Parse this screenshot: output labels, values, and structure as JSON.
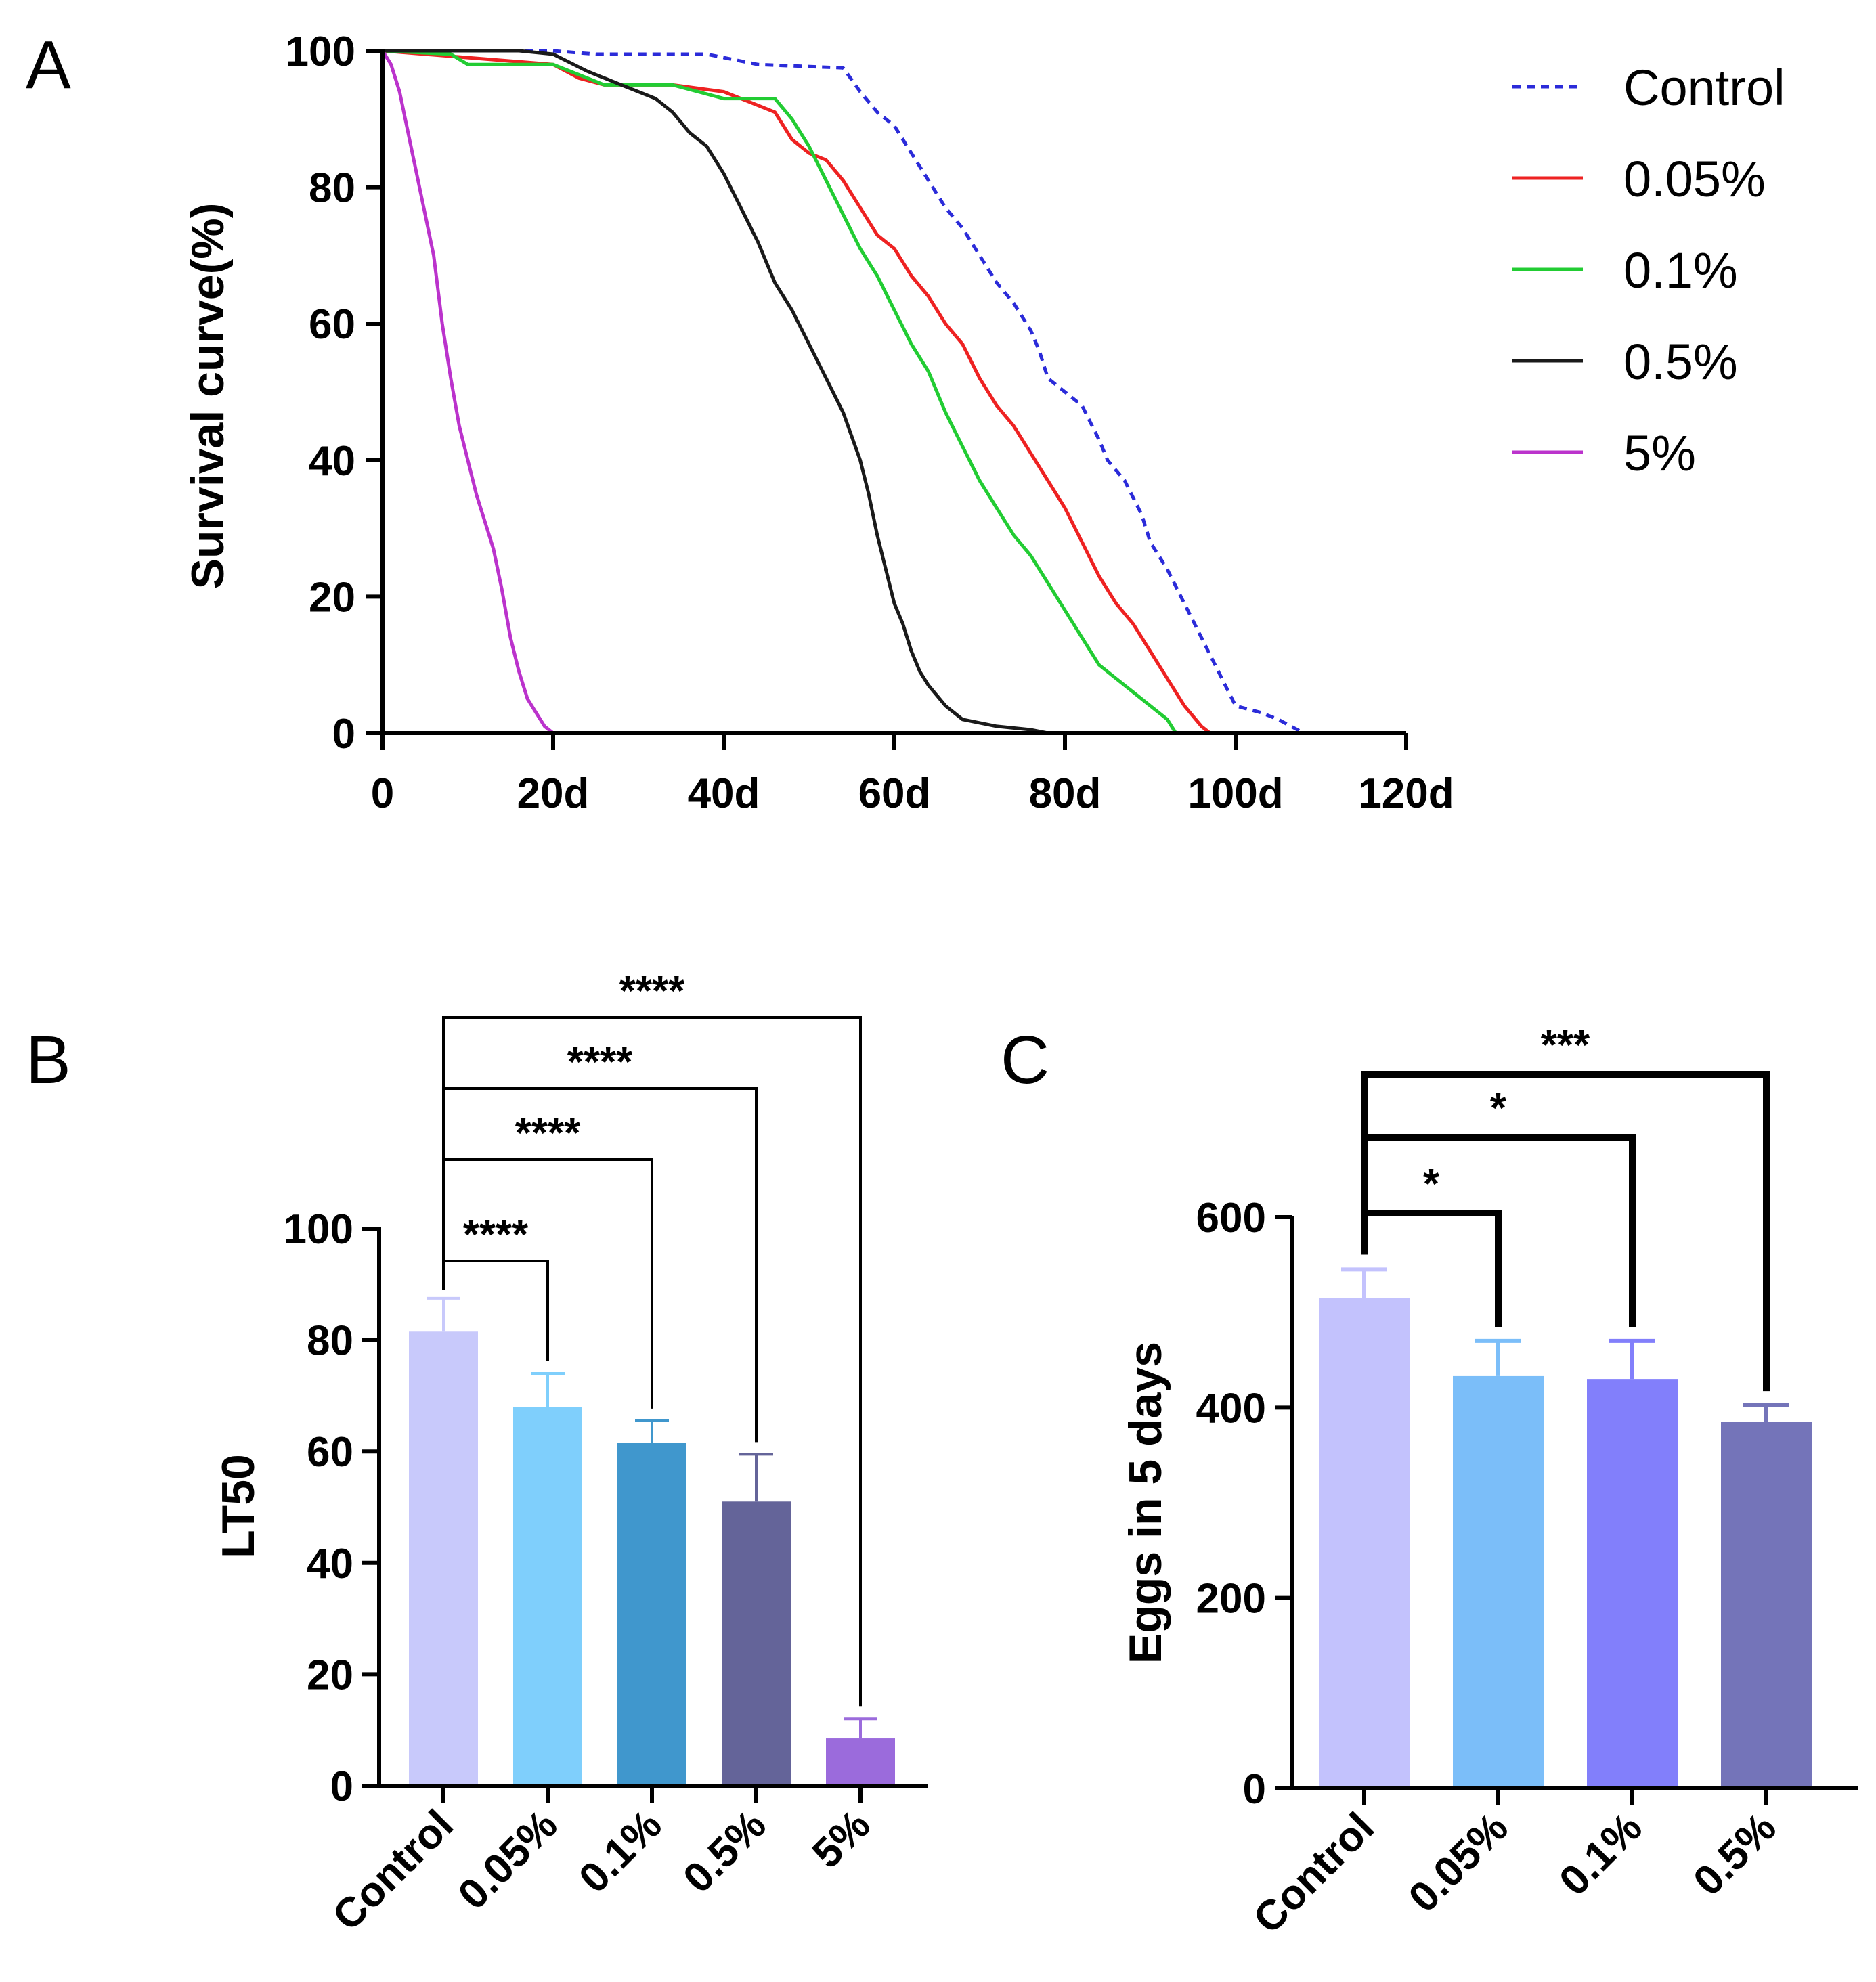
{
  "figure": {
    "panels": {
      "a": "A",
      "b": "B",
      "c": "C"
    }
  },
  "chart_data": [
    {
      "panel": "A",
      "type": "line",
      "title": "",
      "xlabel": "",
      "ylabel": "Survival curve(%)",
      "xlim": [
        0,
        120
      ],
      "ylim": [
        0,
        100
      ],
      "x_ticks": [
        0,
        20,
        40,
        60,
        80,
        100,
        120
      ],
      "x_tick_labels": [
        "0",
        "20d",
        "40d",
        "60d",
        "80d",
        "100d",
        "120d"
      ],
      "y_ticks": [
        0,
        20,
        40,
        60,
        80,
        100
      ],
      "y_tick_labels": [
        "0",
        "20",
        "40",
        "60",
        "80",
        "100"
      ],
      "legend_position": "top-right",
      "series": [
        {
          "name": "Control",
          "color": "#2b2bd9",
          "style": "dashed",
          "points": [
            [
              0,
              100
            ],
            [
              20,
              100
            ],
            [
              25,
              99.5
            ],
            [
              38,
              99.5
            ],
            [
              44,
              98
            ],
            [
              54,
              97.5
            ],
            [
              56,
              94
            ],
            [
              58,
              91
            ],
            [
              60,
              89
            ],
            [
              62,
              85
            ],
            [
              64,
              81
            ],
            [
              66,
              77
            ],
            [
              68,
              74
            ],
            [
              70,
              70
            ],
            [
              72,
              66
            ],
            [
              74,
              63
            ],
            [
              76,
              59
            ],
            [
              77,
              56
            ],
            [
              78,
              52
            ],
            [
              80,
              50
            ],
            [
              82,
              48
            ],
            [
              84,
              43
            ],
            [
              85,
              40
            ],
            [
              87,
              37
            ],
            [
              89,
              32
            ],
            [
              90,
              28
            ],
            [
              92,
              24
            ],
            [
              94,
              19
            ],
            [
              96,
              14
            ],
            [
              98,
              9
            ],
            [
              100,
              4
            ],
            [
              103,
              3
            ],
            [
              105,
              2
            ],
            [
              108,
              0
            ]
          ]
        },
        {
          "name": "0.05%",
          "color": "#ee2222",
          "style": "solid",
          "points": [
            [
              0,
              100
            ],
            [
              10,
              99
            ],
            [
              20,
              98
            ],
            [
              23,
              96
            ],
            [
              26,
              95
            ],
            [
              34,
              95
            ],
            [
              40,
              94
            ],
            [
              44,
              92
            ],
            [
              46,
              91
            ],
            [
              48,
              87
            ],
            [
              50,
              85
            ],
            [
              52,
              84
            ],
            [
              54,
              81
            ],
            [
              56,
              77
            ],
            [
              58,
              73
            ],
            [
              60,
              71
            ],
            [
              62,
              67
            ],
            [
              64,
              64
            ],
            [
              66,
              60
            ],
            [
              68,
              57
            ],
            [
              70,
              52
            ],
            [
              72,
              48
            ],
            [
              74,
              45
            ],
            [
              76,
              41
            ],
            [
              78,
              37
            ],
            [
              80,
              33
            ],
            [
              82,
              28
            ],
            [
              84,
              23
            ],
            [
              86,
              19
            ],
            [
              88,
              16
            ],
            [
              90,
              12
            ],
            [
              92,
              8
            ],
            [
              94,
              4
            ],
            [
              96,
              1
            ],
            [
              97,
              0
            ]
          ]
        },
        {
          "name": "0.1%",
          "color": "#22cc33",
          "style": "solid",
          "points": [
            [
              0,
              100
            ],
            [
              8,
              99.5
            ],
            [
              10,
              98
            ],
            [
              20,
              98
            ],
            [
              24,
              96
            ],
            [
              26,
              95
            ],
            [
              34,
              95
            ],
            [
              40,
              93
            ],
            [
              46,
              93
            ],
            [
              48,
              90
            ],
            [
              50,
              86
            ],
            [
              52,
              81
            ],
            [
              54,
              76
            ],
            [
              56,
              71
            ],
            [
              58,
              67
            ],
            [
              60,
              62
            ],
            [
              62,
              57
            ],
            [
              64,
              53
            ],
            [
              66,
              47
            ],
            [
              68,
              42
            ],
            [
              70,
              37
            ],
            [
              72,
              33
            ],
            [
              74,
              29
            ],
            [
              76,
              26
            ],
            [
              78,
              22
            ],
            [
              80,
              18
            ],
            [
              82,
              14
            ],
            [
              84,
              10
            ],
            [
              86,
              8
            ],
            [
              88,
              6
            ],
            [
              90,
              4
            ],
            [
              92,
              2
            ],
            [
              93,
              0
            ]
          ]
        },
        {
          "name": "0.5%",
          "color": "#1a1a1a",
          "style": "solid",
          "points": [
            [
              0,
              100
            ],
            [
              16,
              100
            ],
            [
              20,
              99.5
            ],
            [
              24,
              97
            ],
            [
              28,
              95
            ],
            [
              32,
              93
            ],
            [
              34,
              91
            ],
            [
              36,
              88
            ],
            [
              38,
              86
            ],
            [
              40,
              82
            ],
            [
              42,
              77
            ],
            [
              44,
              72
            ],
            [
              46,
              66
            ],
            [
              48,
              62
            ],
            [
              50,
              57
            ],
            [
              52,
              52
            ],
            [
              54,
              47
            ],
            [
              56,
              40
            ],
            [
              57,
              35
            ],
            [
              58,
              29
            ],
            [
              59,
              24
            ],
            [
              60,
              19
            ],
            [
              61,
              16
            ],
            [
              62,
              12
            ],
            [
              63,
              9
            ],
            [
              64,
              7
            ],
            [
              66,
              4
            ],
            [
              68,
              2
            ],
            [
              72,
              1
            ],
            [
              76,
              0.5
            ],
            [
              78,
              0
            ]
          ]
        },
        {
          "name": "5%",
          "color": "#bb33cc",
          "style": "solid",
          "points": [
            [
              0,
              100
            ],
            [
              1,
              98
            ],
            [
              2,
              94
            ],
            [
              3,
              88
            ],
            [
              4,
              82
            ],
            [
              5,
              76
            ],
            [
              6,
              70
            ],
            [
              7,
              60
            ],
            [
              8,
              52
            ],
            [
              9,
              45
            ],
            [
              10,
              40
            ],
            [
              11,
              35
            ],
            [
              12,
              31
            ],
            [
              13,
              27
            ],
            [
              14,
              21
            ],
            [
              15,
              14
            ],
            [
              16,
              9
            ],
            [
              17,
              5
            ],
            [
              18,
              3
            ],
            [
              19,
              1
            ],
            [
              20,
              0
            ]
          ]
        }
      ]
    },
    {
      "panel": "B",
      "type": "bar",
      "title": "",
      "xlabel": "",
      "ylabel": "LT50",
      "ylim": [
        0,
        100
      ],
      "y_ticks": [
        0,
        20,
        40,
        60,
        80,
        100
      ],
      "y_tick_labels": [
        "0",
        "20",
        "40",
        "60",
        "80",
        "100"
      ],
      "categories": [
        "Control",
        "0.05%",
        "0.1%",
        "0.5%",
        "5%"
      ],
      "values": [
        81.5,
        68,
        61.5,
        51,
        8.5
      ],
      "errors": [
        6,
        6,
        4,
        8.5,
        3.5
      ],
      "colors": [
        "#c8c9fb",
        "#7fcffc",
        "#4097cd",
        "#646499",
        "#9b6bdc"
      ],
      "significance": [
        {
          "from": "Control",
          "to": "0.05%",
          "label": "****"
        },
        {
          "from": "Control",
          "to": "0.1%",
          "label": "****"
        },
        {
          "from": "Control",
          "to": "0.5%",
          "label": "****"
        },
        {
          "from": "Control",
          "to": "5%",
          "label": "****"
        }
      ]
    },
    {
      "panel": "C",
      "type": "bar",
      "title": "",
      "xlabel": "",
      "ylabel": "Eggs in 5 days",
      "ylim": [
        0,
        600
      ],
      "y_ticks": [
        0,
        200,
        400,
        600
      ],
      "y_tick_labels": [
        "0",
        "200",
        "400",
        "600"
      ],
      "categories": [
        "Control",
        "0.05%",
        "0.1%",
        "0.5%"
      ],
      "values": [
        515,
        433,
        430,
        385
      ],
      "errors": [
        30,
        37,
        40,
        18
      ],
      "colors": [
        "#c3c2fd",
        "#7bbef9",
        "#827ffb",
        "#7474b9"
      ],
      "significance": [
        {
          "from": "Control",
          "to": "0.05%",
          "label": "*"
        },
        {
          "from": "Control",
          "to": "0.1%",
          "label": "*"
        },
        {
          "from": "Control",
          "to": "0.5%",
          "label": "***"
        }
      ]
    }
  ]
}
